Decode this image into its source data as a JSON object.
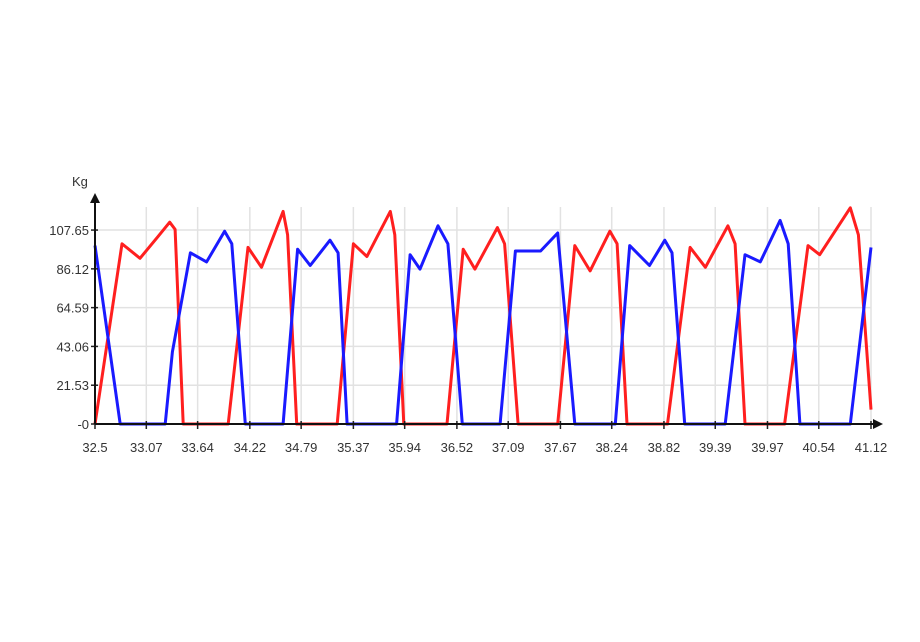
{
  "chart_data": {
    "type": "line",
    "title": "",
    "xlabel": "",
    "ylabel": "Kg",
    "xlim": [
      32.5,
      41.12
    ],
    "ylim": [
      0,
      126
    ],
    "grid": true,
    "legend": "none",
    "x_ticks": [
      "32.5",
      "33.07",
      "33.64",
      "34.22",
      "34.79",
      "35.37",
      "35.94",
      "36.52",
      "37.09",
      "37.67",
      "38.24",
      "38.82",
      "39.39",
      "39.97",
      "40.54",
      "41.12"
    ],
    "x_tick_values": [
      32.5,
      33.07,
      33.64,
      34.22,
      34.79,
      35.37,
      35.94,
      36.52,
      37.09,
      37.67,
      38.24,
      38.82,
      39.39,
      39.97,
      40.54,
      41.12
    ],
    "y_ticks": [
      "-0",
      "21.53",
      "43.06",
      "64.59",
      "86.12",
      "107.65"
    ],
    "y_tick_values": [
      0,
      21.53,
      43.06,
      64.59,
      86.12,
      107.65
    ],
    "series": [
      {
        "color": "#ff1f1f",
        "x": [
          32.5,
          32.8,
          33.0,
          33.2,
          33.33,
          33.39,
          33.48,
          33.98,
          34.2,
          34.35,
          34.59,
          34.64,
          34.74,
          35.19,
          35.37,
          35.52,
          35.78,
          35.83,
          35.93,
          36.41,
          36.59,
          36.72,
          36.97,
          37.05,
          37.2,
          37.64,
          37.83,
          38.0,
          38.22,
          38.3,
          38.41,
          38.86,
          39.11,
          39.28,
          39.53,
          39.61,
          39.72,
          40.16,
          40.42,
          40.55,
          40.89,
          40.98,
          41.12
        ],
        "y": [
          0,
          100,
          92,
          104,
          112,
          108,
          0,
          0,
          98,
          87,
          118,
          105,
          0,
          0,
          100,
          93,
          118,
          105,
          0,
          0,
          97,
          86,
          109,
          100,
          0,
          0,
          99,
          85,
          107,
          100,
          0,
          0,
          98,
          87,
          110,
          100,
          0,
          0,
          99,
          94,
          120,
          105,
          8
        ]
      },
      {
        "color": "#1a1aff",
        "x": [
          32.5,
          32.78,
          33.28,
          33.36,
          33.56,
          33.74,
          33.94,
          34.02,
          34.17,
          34.59,
          34.75,
          34.89,
          35.11,
          35.2,
          35.3,
          35.85,
          36.0,
          36.11,
          36.31,
          36.42,
          36.58,
          37.0,
          37.17,
          37.45,
          37.64,
          37.83,
          38.28,
          38.44,
          38.66,
          38.83,
          38.91,
          39.05,
          39.5,
          39.72,
          39.89,
          40.11,
          40.2,
          40.33,
          40.89,
          41.12
        ],
        "y": [
          99,
          0,
          0,
          40,
          95,
          90,
          107,
          100,
          0,
          0,
          97,
          88,
          102,
          95,
          0,
          0,
          94,
          86,
          110,
          100,
          0,
          0,
          96,
          96,
          106,
          0,
          0,
          99,
          88,
          102,
          95,
          0,
          0,
          94,
          90,
          113,
          100,
          0,
          0,
          98
        ]
      }
    ]
  }
}
